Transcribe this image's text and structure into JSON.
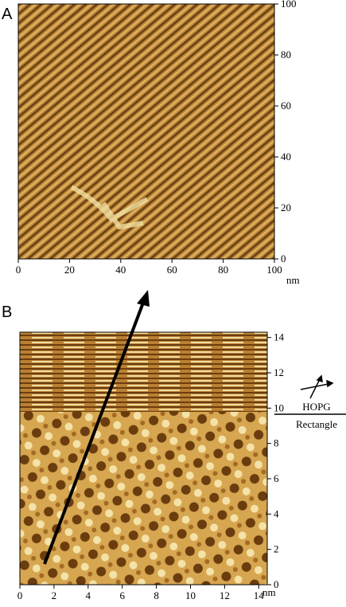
{
  "chart_data": [
    {
      "type": "image",
      "label": "A",
      "xlim": [
        0,
        100
      ],
      "ylim": [
        0,
        100
      ],
      "xticks": [
        0,
        20,
        40,
        60,
        80,
        100
      ],
      "yticks": [
        0,
        20,
        40,
        60,
        80,
        100
      ],
      "x_unit": "nm"
    },
    {
      "type": "image",
      "label": "B",
      "xlim": [
        0,
        14.5
      ],
      "ylim": [
        0,
        14.3
      ],
      "xticks": [
        0,
        2,
        4,
        6,
        8,
        10,
        12,
        14
      ],
      "yticks": [
        0,
        2,
        4,
        6,
        8,
        10,
        12,
        14
      ],
      "x_unit": "nm",
      "annotations": [
        "HOPG",
        "Rectangle"
      ]
    }
  ]
}
